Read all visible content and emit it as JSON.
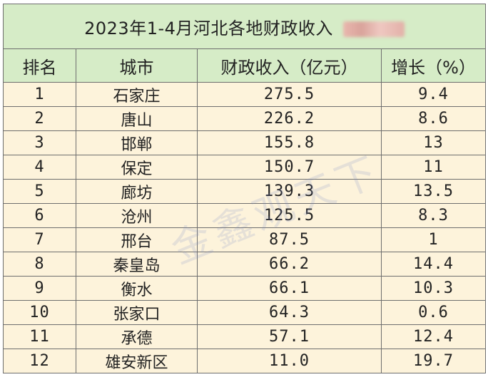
{
  "title": "2023年1-4月河北各地财政收入",
  "headers": {
    "rank": "排名",
    "city": "城市",
    "revenue": "财政收入（亿元）",
    "growth": "增长（%）"
  },
  "rows": [
    {
      "rank": "1",
      "city": "石家庄",
      "revenue": "275.5",
      "growth": "9.4"
    },
    {
      "rank": "2",
      "city": "唐山",
      "revenue": "226.2",
      "growth": "8.6"
    },
    {
      "rank": "3",
      "city": "邯郸",
      "revenue": "155.8",
      "growth": "13"
    },
    {
      "rank": "4",
      "city": "保定",
      "revenue": "150.7",
      "growth": "11"
    },
    {
      "rank": "5",
      "city": "廊坊",
      "revenue": "139.3",
      "growth": "13.5"
    },
    {
      "rank": "6",
      "city": "沧州",
      "revenue": "125.5",
      "growth": "8.3"
    },
    {
      "rank": "7",
      "city": "邢台",
      "revenue": "87.5",
      "growth": "1"
    },
    {
      "rank": "8",
      "city": "秦皇岛",
      "revenue": "66.2",
      "growth": "14.4"
    },
    {
      "rank": "9",
      "city": "衡水",
      "revenue": "66.1",
      "growth": "10.3"
    },
    {
      "rank": "10",
      "city": "张家口",
      "revenue": "64.3",
      "growth": "0.6"
    },
    {
      "rank": "11",
      "city": "承德",
      "revenue": "57.1",
      "growth": "12.4"
    },
    {
      "rank": "12",
      "city": "雄安新区",
      "revenue": "11.0",
      "growth": "19.7"
    }
  ],
  "watermark": "金鑫观天下",
  "colors": {
    "header_bg": "#d6ecc7",
    "row_bg": "#fdf3db",
    "border": "#6e6e6e"
  }
}
